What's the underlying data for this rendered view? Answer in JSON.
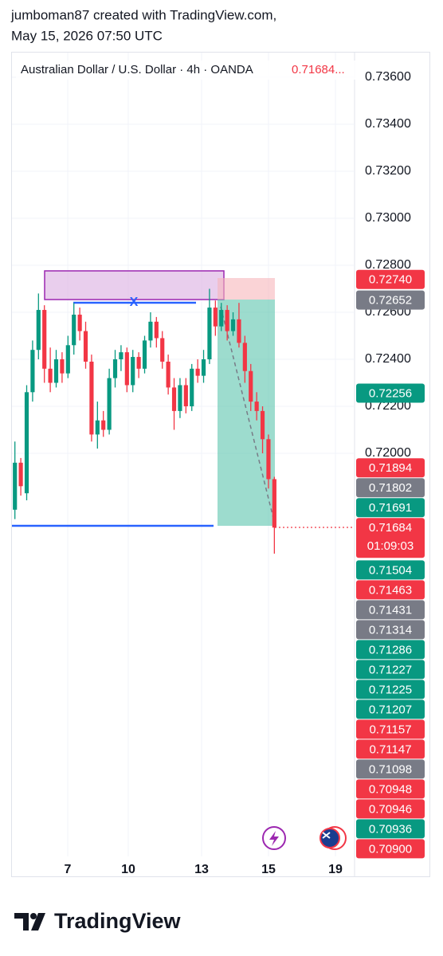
{
  "chart_data": {
    "type": "candlestick",
    "header": [
      "jumboman87 created with TradingView.com,",
      "May 15, 2026 07:50 UTC"
    ],
    "legend": {
      "text": "Australian Dollar / U.S. Dollar · 4h · OANDA",
      "price": "0.71684..."
    },
    "annotation": "X",
    "brand": "TradingView",
    "up_color": "#089981",
    "down_color": "#f23645",
    "x": [
      0.5,
      1.5,
      2.5,
      3.5,
      4.5,
      5.5,
      6.5,
      7.5,
      8.5,
      9.5,
      10.5,
      11.5,
      12.5,
      13.5,
      14.5,
      15.5,
      16.5,
      17.5,
      18.5,
      19.5,
      20.5,
      21.5,
      22.5,
      23.5,
      24.5,
      25.5,
      26.5,
      27.5,
      28.5,
      29.5,
      30.5,
      31.5,
      32.5,
      33.5,
      34.5,
      35.5,
      36.5,
      37.5,
      38.5,
      39.5,
      40.5,
      41.5,
      42.5,
      43.5,
      44.5
    ],
    "ohlc": [
      [
        0.7176,
        0.7205,
        0.7172,
        0.7196
      ],
      [
        0.7196,
        0.7198,
        0.7182,
        0.7186
      ],
      [
        0.7183,
        0.7229,
        0.718,
        0.7226
      ],
      [
        0.7226,
        0.7248,
        0.7222,
        0.7244
      ],
      [
        0.7244,
        0.7268,
        0.724,
        0.7261
      ],
      [
        0.7261,
        0.7263,
        0.723,
        0.7236
      ],
      [
        0.7236,
        0.7245,
        0.7226,
        0.723
      ],
      [
        0.723,
        0.7244,
        0.7228,
        0.724
      ],
      [
        0.724,
        0.7243,
        0.723,
        0.7234
      ],
      [
        0.7234,
        0.725,
        0.7232,
        0.7246
      ],
      [
        0.7246,
        0.7264,
        0.7242,
        0.7259
      ],
      [
        0.7259,
        0.7262,
        0.7248,
        0.7252
      ],
      [
        0.7252,
        0.7256,
        0.7236,
        0.7239
      ],
      [
        0.7239,
        0.7242,
        0.7205,
        0.7208
      ],
      [
        0.7208,
        0.7222,
        0.7202,
        0.7214
      ],
      [
        0.7214,
        0.7218,
        0.7207,
        0.721
      ],
      [
        0.721,
        0.7236,
        0.7208,
        0.7232
      ],
      [
        0.7232,
        0.7244,
        0.7228,
        0.724
      ],
      [
        0.724,
        0.7246,
        0.7235,
        0.7243
      ],
      [
        0.7243,
        0.7245,
        0.7226,
        0.7229
      ],
      [
        0.7229,
        0.7244,
        0.7226,
        0.7241
      ],
      [
        0.7241,
        0.7243,
        0.7232,
        0.7236
      ],
      [
        0.7236,
        0.725,
        0.7234,
        0.7248
      ],
      [
        0.7248,
        0.726,
        0.7245,
        0.7256
      ],
      [
        0.7256,
        0.7258,
        0.7245,
        0.7249
      ],
      [
        0.7249,
        0.7252,
        0.7236,
        0.7239
      ],
      [
        0.7239,
        0.7242,
        0.7225,
        0.7228
      ],
      [
        0.7228,
        0.7232,
        0.721,
        0.7218
      ],
      [
        0.7218,
        0.7232,
        0.7215,
        0.7229
      ],
      [
        0.7229,
        0.7232,
        0.7217,
        0.722
      ],
      [
        0.722,
        0.7238,
        0.7218,
        0.7236
      ],
      [
        0.7236,
        0.724,
        0.723,
        0.7233
      ],
      [
        0.7233,
        0.7244,
        0.723,
        0.724
      ],
      [
        0.724,
        0.727,
        0.7238,
        0.7262
      ],
      [
        0.7262,
        0.7265,
        0.725,
        0.7254
      ],
      [
        0.7254,
        0.7264,
        0.7252,
        0.7261
      ],
      [
        0.7261,
        0.7263,
        0.7248,
        0.7252
      ],
      [
        0.7252,
        0.726,
        0.725,
        0.7257
      ],
      [
        0.7257,
        0.7264,
        0.7245,
        0.7247
      ],
      [
        0.7247,
        0.725,
        0.723,
        0.7235
      ],
      [
        0.7235,
        0.7238,
        0.7218,
        0.7222
      ],
      [
        0.7222,
        0.7226,
        0.7214,
        0.7218
      ],
      [
        0.7218,
        0.722,
        0.72,
        0.7206
      ],
      [
        0.7206,
        0.7208,
        0.7185,
        0.7189
      ],
      [
        0.7189,
        0.719,
        0.71573,
        0.71684
      ]
    ],
    "xlim": [
      0,
      58.1
    ],
    "xticks": [
      {
        "value": 9.46,
        "label": "7"
      },
      {
        "value": 19.73,
        "label": "10"
      },
      {
        "value": 32.16,
        "label": "13"
      },
      {
        "value": 43.51,
        "label": "15"
      },
      {
        "value": 54.86,
        "label": "19"
      }
    ],
    "ylim": [
      0.7029,
      0.7371
    ],
    "yticks": [
      {
        "value": 0.736,
        "label": "0.73600"
      },
      {
        "value": 0.734,
        "label": "0.73400"
      },
      {
        "value": 0.732,
        "label": "0.73200"
      },
      {
        "value": 0.73,
        "label": "0.73000"
      },
      {
        "value": 0.728,
        "label": "0.72800"
      },
      {
        "value": 0.726,
        "label": "0.72600"
      },
      {
        "value": 0.724,
        "label": "0.72400"
      },
      {
        "value": 0.722,
        "label": "0.72200"
      },
      {
        "value": 0.72,
        "label": "0.72000"
      }
    ],
    "grid": true,
    "price_labels": [
      {
        "value": 0.7274,
        "label": "0.72740",
        "color": "#f23645"
      },
      {
        "value": 0.72652,
        "label": "0.72652",
        "color": "#787b86"
      },
      {
        "value": 0.72256,
        "label": "0.72256",
        "color": "#089981"
      },
      {
        "value": 0.71894,
        "label": "0.71894",
        "color": "#f23645"
      },
      {
        "value": 0.71802,
        "label": "0.71802",
        "color": "#787b86"
      },
      {
        "value": 0.71691,
        "label": "0.71691",
        "color": "#089981"
      },
      {
        "value": 0.71684,
        "label": "0.71684",
        "color": "#f23645",
        "countdown": "01:09:03"
      },
      {
        "value": 0.71504,
        "label": "0.71504",
        "color": "#089981"
      },
      {
        "value": 0.71463,
        "label": "0.71463",
        "color": "#f23645"
      },
      {
        "value": 0.71431,
        "label": "0.71431",
        "color": "#787b86"
      },
      {
        "value": 0.71314,
        "label": "0.71314",
        "color": "#787b86"
      },
      {
        "value": 0.71286,
        "label": "0.71286",
        "color": "#089981"
      },
      {
        "value": 0.71227,
        "label": "0.71227",
        "color": "#089981"
      },
      {
        "value": 0.71225,
        "label": "0.71225",
        "color": "#089981"
      },
      {
        "value": 0.71207,
        "label": "0.71207",
        "color": "#089981"
      },
      {
        "value": 0.71157,
        "label": "0.71157",
        "color": "#f23645"
      },
      {
        "value": 0.71147,
        "label": "0.71147",
        "color": "#f23645"
      },
      {
        "value": 0.71098,
        "label": "0.71098",
        "color": "#787b86"
      },
      {
        "value": 0.70948,
        "label": "0.70948",
        "color": "#f23645"
      },
      {
        "value": 0.70946,
        "label": "0.70946",
        "color": "#f23645"
      },
      {
        "value": 0.70936,
        "label": "0.70936",
        "color": "#089981"
      },
      {
        "value": 0.709,
        "label": "0.70900",
        "color": "#f23645"
      }
    ]
  }
}
